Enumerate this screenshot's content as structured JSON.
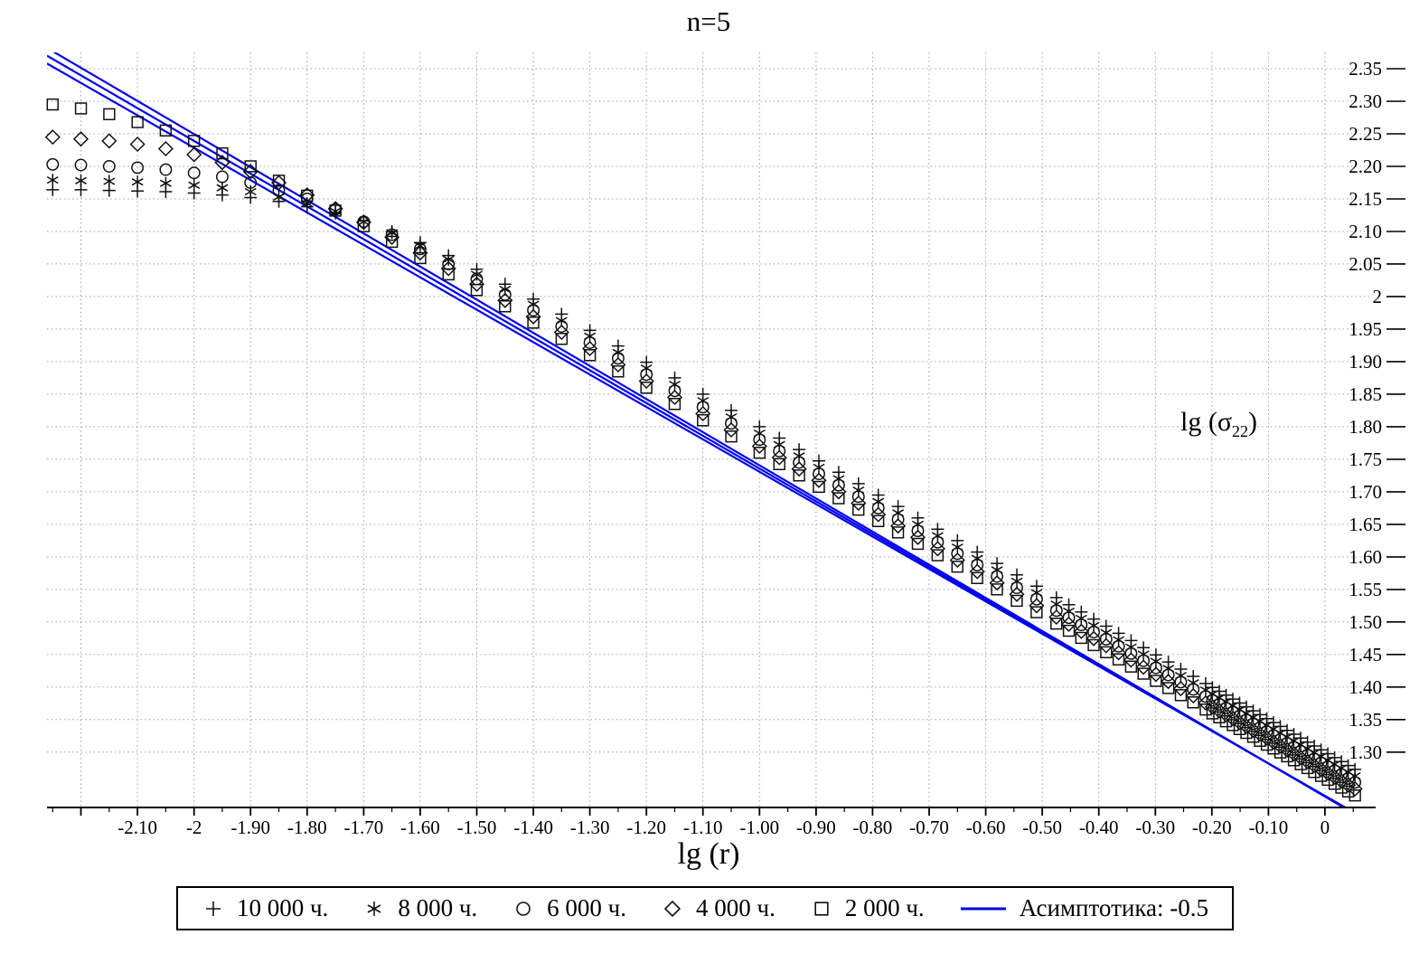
{
  "labels": {
    "title": "n=5",
    "xlabel": "lg (r)",
    "ylabel_prefix": "lg (σ",
    "ylabel_sub": "22",
    "ylabel_suffix": ")"
  },
  "colors": {
    "marker": "#111111",
    "asymptote": "#0000ee",
    "grid": "#a0a0a0",
    "axis": "#000000",
    "legend_border": "#000000"
  },
  "legend": {
    "items": [
      {
        "marker": "plus",
        "label": "10 000 ч."
      },
      {
        "marker": "asterisk",
        "label": "8 000 ч."
      },
      {
        "marker": "circle",
        "label": "6 000 ч."
      },
      {
        "marker": "diamond",
        "label": "4 000 ч."
      },
      {
        "marker": "square",
        "label": "2 000 ч."
      },
      {
        "marker": "line",
        "label": "Асимптотика: -0.5"
      }
    ]
  },
  "chart_data": {
    "type": "scatter",
    "title": "n=5",
    "xlabel": "lg (r)",
    "ylabel": "lg (σ22)",
    "xlim": [
      -2.26,
      0.08
    ],
    "ylim": [
      1.215,
      2.375
    ],
    "grid": true,
    "legend_position": "bottom",
    "x_ticks": [
      -2.1,
      -2,
      -1.9,
      -1.8,
      -1.7,
      -1.6,
      -1.5,
      -1.4,
      -1.3,
      -1.2,
      -1.1,
      -1,
      -0.9,
      -0.8,
      -0.7,
      -0.6,
      -0.5,
      -0.4,
      -0.3,
      -0.2,
      -0.1,
      0
    ],
    "x_tick_labels": [
      "-2.10",
      "-2",
      "-1.90",
      "-1.80",
      "-1.70",
      "-1.60",
      "-1.50",
      "-1.40",
      "-1.30",
      "-1.20",
      "-1.10",
      "-1.00",
      "-0.90",
      "-0.80",
      "-0.70",
      "-0.60",
      "-0.50",
      "-0.40",
      "-0.30",
      "-0.20",
      "-0.10",
      "0"
    ],
    "y_ticks": [
      2.35,
      2.3,
      2.25,
      2.2,
      2.15,
      2.1,
      2.05,
      2,
      1.95,
      1.9,
      1.85,
      1.8,
      1.75,
      1.7,
      1.65,
      1.6,
      1.55,
      1.5,
      1.45,
      1.4,
      1.35,
      1.3
    ],
    "y_tick_labels": [
      "2.35",
      "2.30",
      "2.25",
      "2.20",
      "2.15",
      "2.10",
      "2.05",
      "2",
      "1.95",
      "1.90",
      "1.85",
      "1.80",
      "1.75",
      "1.70",
      "1.65",
      "1.60",
      "1.55",
      "1.50",
      "1.45",
      "1.40",
      "1.35",
      "1.30"
    ],
    "x": [
      -2.25,
      -2.2,
      -2.15,
      -2.1,
      -2.05,
      -2,
      -1.95,
      -1.9,
      -1.85,
      -1.8,
      -1.75,
      -1.7,
      -1.65,
      -1.6,
      -1.55,
      -1.5,
      -1.45,
      -1.4,
      -1.35,
      -1.3,
      -1.25,
      -1.2,
      -1.15,
      -1.1,
      -1.05,
      -1,
      -0.965,
      -0.93,
      -0.895,
      -0.86,
      -0.825,
      -0.79,
      -0.755,
      -0.72,
      -0.685,
      -0.65,
      -0.615,
      -0.58,
      -0.545,
      -0.51,
      -0.475,
      -0.453,
      -0.431,
      -0.409,
      -0.387,
      -0.365,
      -0.343,
      -0.321,
      -0.299,
      -0.277,
      -0.255,
      -0.233,
      -0.211,
      -0.199,
      -0.187,
      -0.175,
      -0.163,
      -0.151,
      -0.139,
      -0.127,
      -0.115,
      -0.103,
      -0.091,
      -0.079,
      -0.067,
      -0.055,
      -0.043,
      -0.031,
      -0.019,
      -0.007,
      0.005,
      0.017,
      0.029,
      0.041,
      0.053
    ],
    "series": [
      {
        "name": "10 000 ч.",
        "marker": "plus",
        "values": [
          2.164,
          2.164,
          2.163,
          2.162,
          2.161,
          2.159,
          2.156,
          2.152,
          2.146,
          2.138,
          2.128,
          2.116,
          2.1,
          2.083,
          2.063,
          2.042,
          2.019,
          1.996,
          1.973,
          1.948,
          1.924,
          1.899,
          1.875,
          1.85,
          1.825,
          1.8,
          1.7825,
          1.765,
          1.7475,
          1.73,
          1.7125,
          1.695,
          1.6775,
          1.66,
          1.6425,
          1.625,
          1.6075,
          1.59,
          1.5725,
          1.555,
          1.5375,
          1.5265,
          1.5155,
          1.5045,
          1.4935,
          1.4825,
          1.4715,
          1.4605,
          1.4495,
          1.4385,
          1.4275,
          1.4165,
          1.4055,
          1.3995,
          1.3935,
          1.3875,
          1.3815,
          1.3755,
          1.3695,
          1.3635,
          1.3575,
          1.3515,
          1.3455,
          1.3395,
          1.3335,
          1.3275,
          1.3215,
          1.3155,
          1.3095,
          1.3035,
          1.2975,
          1.2915,
          1.2855,
          1.2795,
          1.2735
        ]
      },
      {
        "name": "8 000 ч.",
        "marker": "asterisk",
        "values": [
          2.179,
          2.178,
          2.177,
          2.176,
          2.174,
          2.171,
          2.167,
          2.161,
          2.153,
          2.143,
          2.131,
          2.115,
          2.098,
          2.078,
          2.057,
          2.034,
          2.011,
          1.988,
          1.963,
          1.939,
          1.914,
          1.89,
          1.865,
          1.84,
          1.815,
          1.79,
          1.7725,
          1.755,
          1.7375,
          1.72,
          1.7025,
          1.685,
          1.6675,
          1.65,
          1.6325,
          1.615,
          1.5975,
          1.58,
          1.5625,
          1.545,
          1.5275,
          1.5165,
          1.5055,
          1.4945,
          1.4835,
          1.4725,
          1.4615,
          1.4505,
          1.4395,
          1.4285,
          1.4175,
          1.4065,
          1.3955,
          1.3895,
          1.3835,
          1.3775,
          1.3715,
          1.3655,
          1.3595,
          1.3535,
          1.3475,
          1.3415,
          1.3355,
          1.3295,
          1.3235,
          1.3175,
          1.3115,
          1.3055,
          1.2995,
          1.2935,
          1.2875,
          1.2815,
          1.2755,
          1.2695,
          1.2635
        ]
      },
      {
        "name": "6 000 ч.",
        "marker": "circle",
        "values": [
          2.203,
          2.202,
          2.2,
          2.198,
          2.195,
          2.19,
          2.184,
          2.175,
          2.163,
          2.15,
          2.134,
          2.115,
          2.095,
          2.073,
          2.05,
          2.027,
          2.003,
          1.979,
          1.954,
          1.929,
          1.905,
          1.88,
          1.855,
          1.83,
          1.805,
          1.78,
          1.7625,
          1.745,
          1.7275,
          1.71,
          1.6925,
          1.675,
          1.6575,
          1.64,
          1.6225,
          1.605,
          1.5875,
          1.57,
          1.5525,
          1.535,
          1.5175,
          1.5065,
          1.4955,
          1.4845,
          1.4735,
          1.4625,
          1.4515,
          1.4405,
          1.4295,
          1.4185,
          1.4075,
          1.3965,
          1.3855,
          1.3795,
          1.3735,
          1.3675,
          1.3615,
          1.3555,
          1.3495,
          1.3435,
          1.3375,
          1.3315,
          1.3255,
          1.3195,
          1.3135,
          1.3075,
          1.3015,
          1.2955,
          1.2895,
          1.2835,
          1.2775,
          1.2715,
          1.2655,
          1.2595,
          1.2535
        ]
      },
      {
        "name": "4 000 ч.",
        "marker": "diamond",
        "values": [
          2.245,
          2.242,
          2.239,
          2.234,
          2.227,
          2.218,
          2.206,
          2.192,
          2.175,
          2.156,
          2.135,
          2.114,
          2.091,
          2.067,
          2.043,
          2.019,
          1.994,
          1.969,
          1.945,
          1.92,
          1.895,
          1.87,
          1.845,
          1.82,
          1.795,
          1.77,
          1.7525,
          1.735,
          1.7175,
          1.7,
          1.6825,
          1.665,
          1.6475,
          1.63,
          1.6125,
          1.595,
          1.5775,
          1.56,
          1.5425,
          1.525,
          1.5075,
          1.4965,
          1.4855,
          1.4745,
          1.4635,
          1.4525,
          1.4415,
          1.4305,
          1.4195,
          1.4085,
          1.3975,
          1.3865,
          1.3755,
          1.3695,
          1.3635,
          1.3575,
          1.3515,
          1.3455,
          1.3395,
          1.3335,
          1.3275,
          1.3215,
          1.3155,
          1.3095,
          1.3035,
          1.2975,
          1.2915,
          1.2855,
          1.2795,
          1.2735,
          1.2675,
          1.2615,
          1.2555,
          1.2495,
          1.2435
        ]
      },
      {
        "name": "2 000 ч.",
        "marker": "square",
        "values": [
          2.295,
          2.289,
          2.28,
          2.268,
          2.255,
          2.239,
          2.22,
          2.2,
          2.178,
          2.155,
          2.132,
          2.108,
          2.084,
          2.059,
          2.034,
          2.01,
          1.985,
          1.96,
          1.935,
          1.91,
          1.885,
          1.86,
          1.835,
          1.81,
          1.785,
          1.76,
          1.7425,
          1.725,
          1.7075,
          1.69,
          1.6725,
          1.655,
          1.6375,
          1.62,
          1.6025,
          1.585,
          1.5675,
          1.55,
          1.5325,
          1.515,
          1.4975,
          1.4865,
          1.4755,
          1.4645,
          1.4535,
          1.4425,
          1.4315,
          1.4205,
          1.4095,
          1.3985,
          1.3875,
          1.3765,
          1.3655,
          1.3595,
          1.3535,
          1.3475,
          1.3415,
          1.3355,
          1.3295,
          1.3235,
          1.3175,
          1.3115,
          1.3055,
          1.2995,
          1.2935,
          1.2875,
          1.2815,
          1.2755,
          1.2695,
          1.2635,
          1.2575,
          1.2515,
          1.2455,
          1.2395,
          1.2335
        ]
      }
    ],
    "asymptotes": {
      "label": "Асимптотика: -0.5",
      "slope": -0.5,
      "lines": [
        {
          "x1": -2.26,
          "y1": 2.358,
          "x2": 0.08,
          "y2": 1.193
        },
        {
          "x1": -2.26,
          "y1": 2.37,
          "x2": 0.08,
          "y2": 1.192
        },
        {
          "x1": -2.26,
          "y1": 2.382,
          "x2": 0.08,
          "y2": 1.191
        }
      ]
    }
  }
}
